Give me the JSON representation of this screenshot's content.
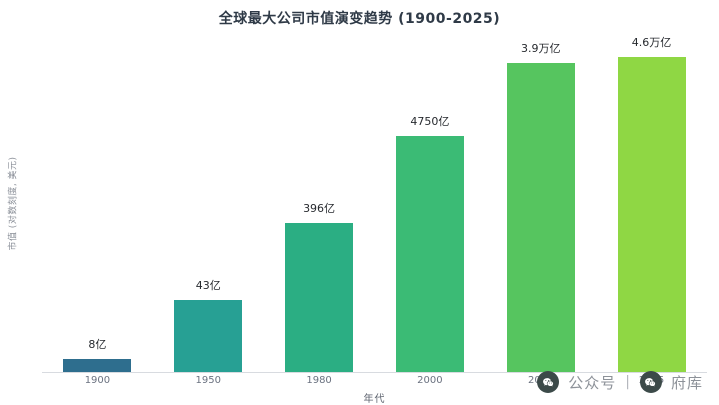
{
  "chart_data": {
    "type": "bar",
    "title": "全球最大公司市值演变趋势 (1900-2025)",
    "xlabel": "年代",
    "ylabel": "市值 (对数刻度, 美元)",
    "scale": "log",
    "grid": false,
    "legend": "none",
    "categories": [
      "1900",
      "1950",
      "1980",
      "2000",
      "2024",
      "2025"
    ],
    "values": [
      800000000,
      4300000000,
      39600000000,
      475000000000,
      3900000000000,
      4600000000000
    ],
    "value_labels": [
      "8亿",
      "43亿",
      "396亿",
      "4750亿",
      "3.9万亿",
      "4.6万亿"
    ],
    "bar_colors": [
      "#2e6e8e",
      "#27a094",
      "#2bae83",
      "#3bbb75",
      "#56c55f",
      "#8fd744"
    ]
  },
  "watermark": {
    "left_text": "公众号",
    "divider": "|",
    "right_text": "府库"
  }
}
